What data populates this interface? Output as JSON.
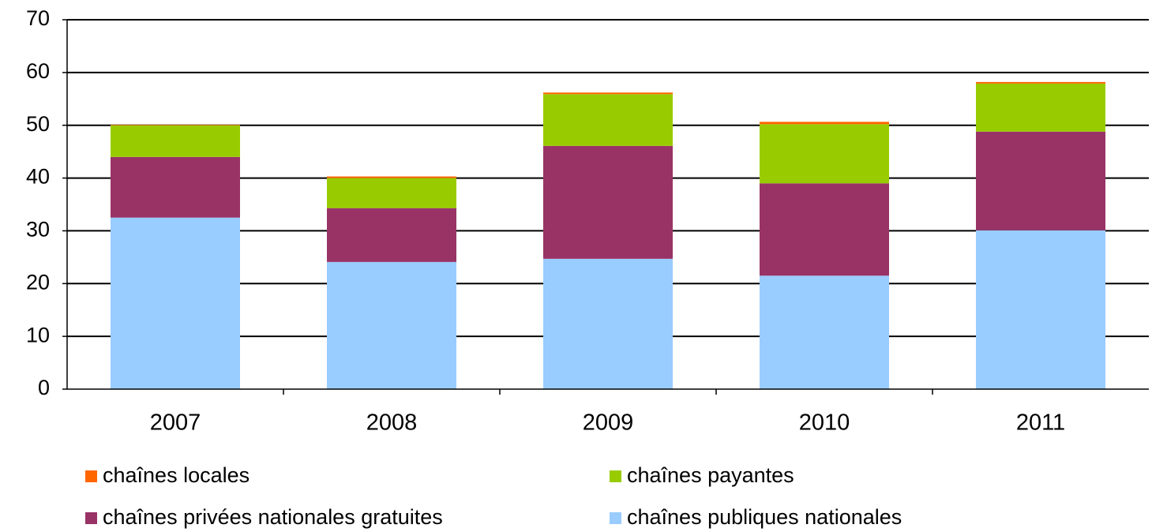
{
  "chart_data": {
    "type": "stacked_bar",
    "categories": [
      "2007",
      "2008",
      "2009",
      "2010",
      "2011"
    ],
    "series": [
      {
        "name": "chaînes publiques nationales",
        "color": "#99ccff",
        "values": [
          32.5,
          24.1,
          24.7,
          21.5,
          30.1
        ]
      },
      {
        "name": "chaînes privées nationales gratuites",
        "color": "#993366",
        "values": [
          11.5,
          10.2,
          21.4,
          17.5,
          18.7
        ]
      },
      {
        "name": "chaînes payantes",
        "color": "#99cc00",
        "values": [
          6.0,
          5.7,
          9.8,
          11.2,
          9.1
        ]
      },
      {
        "name": "chaînes locales",
        "color": "#ff6600",
        "values": [
          0.1,
          0.3,
          0.3,
          0.45,
          0.3
        ]
      }
    ],
    "ylim": [
      0,
      70
    ],
    "yticks": [
      0,
      10,
      20,
      30,
      40,
      50,
      60,
      70
    ],
    "grid": true
  }
}
